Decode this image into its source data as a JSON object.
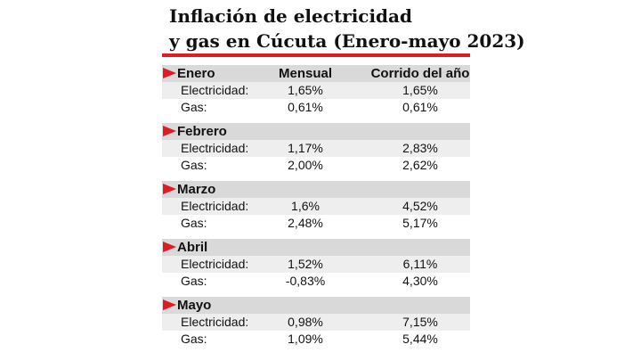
{
  "header": {
    "title_line1": "Inflación de electricidad",
    "title_line2": "y gas en Cúcuta (Enero-mayo 2023)"
  },
  "table": {
    "columns": [
      "Mensual",
      "Corrido del año"
    ],
    "sections": [
      {
        "month": "Enero",
        "rows": [
          {
            "label": "Electricidad:",
            "values": [
              "1,65%",
              "1,65%"
            ]
          },
          {
            "label": "Gas:",
            "values": [
              "0,61%",
              "0,61%"
            ]
          }
        ]
      },
      {
        "month": "Febrero",
        "rows": [
          {
            "label": "Electricidad:",
            "values": [
              "1,17%",
              "2,83%"
            ]
          },
          {
            "label": "Gas:",
            "values": [
              "2,00%",
              "2,62%"
            ]
          }
        ]
      },
      {
        "month": "Marzo",
        "rows": [
          {
            "label": "Electricidad:",
            "values": [
              "1,6%",
              "4,52%"
            ]
          },
          {
            "label": "Gas:",
            "values": [
              "2,48%",
              "5,17%"
            ]
          }
        ]
      },
      {
        "month": "Abril",
        "rows": [
          {
            "label": "Electricidad:",
            "values": [
              "1,52%",
              "6,11%"
            ]
          },
          {
            "label": "Gas:",
            "values": [
              "-0,83%",
              "4,30%"
            ]
          }
        ]
      },
      {
        "month": "Mayo",
        "rows": [
          {
            "label": "Electricidad:",
            "values": [
              "0,98%",
              "7,15%"
            ]
          },
          {
            "label": "Gas:",
            "values": [
              "1,09%",
              "5,44%"
            ]
          }
        ]
      }
    ]
  }
}
